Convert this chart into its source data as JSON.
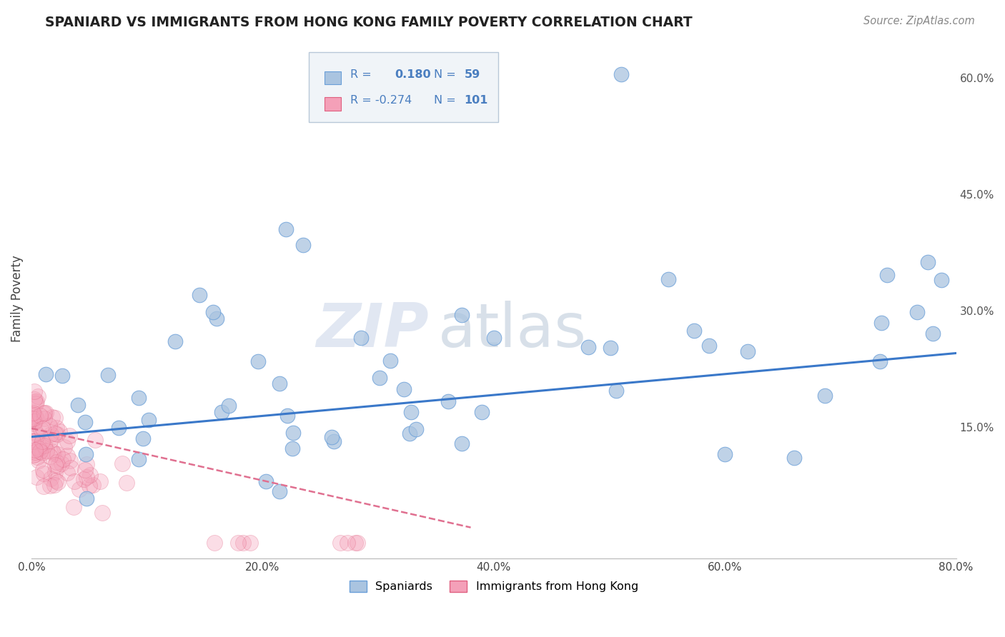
{
  "title": "SPANIARD VS IMMIGRANTS FROM HONG KONG FAMILY POVERTY CORRELATION CHART",
  "source": "Source: ZipAtlas.com",
  "ylabel": "Family Poverty",
  "watermark_zip": "ZIP",
  "watermark_atlas": "atlas",
  "xlim": [
    0.0,
    0.8
  ],
  "ylim": [
    -0.02,
    0.65
  ],
  "yticks": [
    0.0,
    0.15,
    0.3,
    0.45,
    0.6
  ],
  "ytick_labels": [
    "",
    "15.0%",
    "30.0%",
    "45.0%",
    "60.0%"
  ],
  "xticks": [
    0.0,
    0.2,
    0.4,
    0.6,
    0.8
  ],
  "xtick_labels": [
    "0.0%",
    "20.0%",
    "40.0%",
    "60.0%",
    "80.0%"
  ],
  "color_spaniards": "#aac4e0",
  "color_hk": "#f4a0b8",
  "color_spaniards_edge": "#6a9fd8",
  "color_hk_edge": "#e06080",
  "line_color_spaniards": "#3a78c9",
  "line_color_hk": "#e07090",
  "grid_color": "#d0d0d0",
  "background_color": "#ffffff",
  "legend_box_color": "#e8eef5",
  "legend_box_edge": "#b0bec5",
  "r1_val": "0.180",
  "n1_val": "59",
  "r2_val": "-0.274",
  "n2_val": "101",
  "text_blue": "#4a7ec0",
  "sp_line_y0": 0.137,
  "sp_line_y1": 0.245,
  "hk_line_y0": 0.148,
  "hk_line_y1": 0.02,
  "hk_line_x1": 0.38
}
